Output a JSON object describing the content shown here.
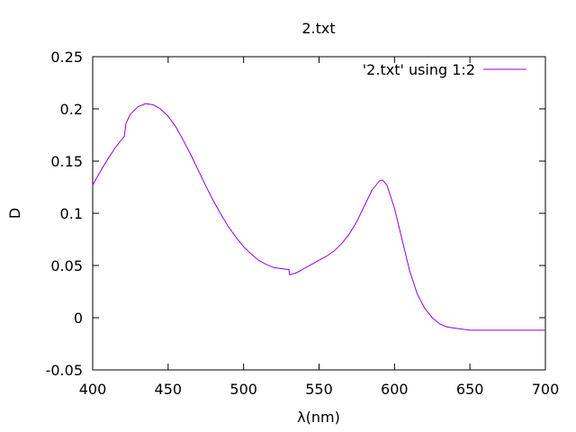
{
  "chart_data": {
    "type": "line",
    "title": "2.txt",
    "xlabel": "λ(nm)",
    "ylabel": "D",
    "xlim": [
      400,
      700
    ],
    "ylim": [
      -0.05,
      0.25
    ],
    "x_ticks": [
      400,
      450,
      500,
      550,
      600,
      650,
      700
    ],
    "y_ticks": [
      -0.05,
      0,
      0.05,
      0.1,
      0.15,
      0.2,
      0.25
    ],
    "x_tick_labels": [
      "400",
      "450",
      "500",
      "550",
      "600",
      "650",
      "700"
    ],
    "y_tick_labels": [
      "-0.05",
      "0",
      "0.05",
      "0.1",
      "0.15",
      "0.2",
      "0.25"
    ],
    "grid": false,
    "legend_position": "top-right",
    "colors": {
      "series": "#9400d3",
      "axes": "#000000"
    },
    "series": [
      {
        "name": "'2.txt' using 1:2",
        "x": [
          400,
          405,
          410,
          415,
          420,
          421,
          422,
          425,
          430,
          435,
          440,
          445,
          450,
          455,
          460,
          465,
          470,
          475,
          480,
          485,
          490,
          495,
          500,
          505,
          510,
          515,
          520,
          525,
          530,
          530.5,
          535,
          540,
          545,
          550,
          555,
          560,
          565,
          570,
          575,
          580,
          585,
          590,
          592,
          595,
          600,
          605,
          610,
          615,
          620,
          625,
          630,
          635,
          640,
          645,
          650,
          655,
          660,
          670,
          680,
          690,
          700
        ],
        "y": [
          0.127,
          0.14,
          0.152,
          0.163,
          0.172,
          0.174,
          0.186,
          0.195,
          0.202,
          0.205,
          0.204,
          0.2,
          0.193,
          0.183,
          0.17,
          0.156,
          0.141,
          0.126,
          0.112,
          0.099,
          0.087,
          0.077,
          0.068,
          0.061,
          0.055,
          0.051,
          0.048,
          0.047,
          0.046,
          0.041,
          0.043,
          0.047,
          0.051,
          0.055,
          0.059,
          0.064,
          0.071,
          0.08,
          0.092,
          0.107,
          0.122,
          0.131,
          0.132,
          0.127,
          0.105,
          0.075,
          0.045,
          0.023,
          0.009,
          0.0,
          -0.006,
          -0.009,
          -0.01,
          -0.011,
          -0.012,
          -0.012,
          -0.012,
          -0.012,
          -0.012,
          -0.012,
          -0.012
        ]
      }
    ]
  }
}
